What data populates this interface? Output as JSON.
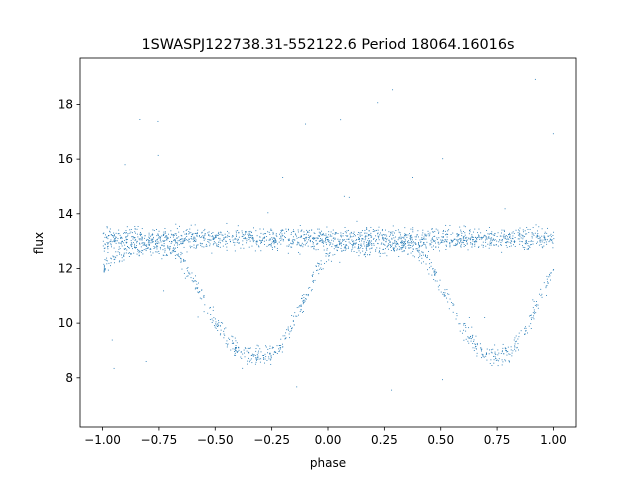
{
  "chart_data": {
    "type": "scatter",
    "title": "1SWASPJ122738.31-552122.6 Period 18064.16016s",
    "xlabel": "phase",
    "ylabel": "flux",
    "xlim": [
      -1.1,
      1.1
    ],
    "ylim": [
      6.2,
      19.7
    ],
    "xticks": [
      -1.0,
      -0.75,
      -0.5,
      -0.25,
      0.0,
      0.25,
      0.5,
      0.75,
      1.0
    ],
    "xtick_labels": [
      "−1.00",
      "−0.75",
      "−0.50",
      "−0.25",
      "0.00",
      "0.25",
      "0.50",
      "0.75",
      "1.00"
    ],
    "yticks": [
      8,
      10,
      12,
      14,
      16,
      18
    ],
    "ytick_labels": [
      "8",
      "10",
      "12",
      "14",
      "16",
      "18"
    ],
    "grid": false,
    "point_color": "#1f77b4",
    "series": [
      {
        "name": "",
        "description_points": "phase-folded light curve; upper band near flux 13.1 across all phases; second branch dips to minima near 8.8 at phase -0.28 and 0.72",
        "x": [
          -1.0,
          -0.95,
          -0.9,
          -0.85,
          -0.8,
          -0.75,
          -0.7,
          -0.65,
          -0.6,
          -0.55,
          -0.5,
          -0.45,
          -0.4,
          -0.35,
          -0.3,
          -0.25,
          -0.2,
          -0.15,
          -0.1,
          -0.05,
          0.0,
          0.05,
          0.1,
          0.15,
          0.2,
          0.25,
          0.3,
          0.35,
          0.4,
          0.45,
          0.5,
          0.55,
          0.6,
          0.65,
          0.7,
          0.75,
          0.8,
          0.85,
          0.9,
          0.95,
          1.0
        ],
        "y_upper": [
          13.1,
          13.1,
          13.1,
          13.1,
          13.1,
          13.1,
          13.1,
          13.1,
          13.1,
          13.1,
          13.1,
          13.1,
          13.1,
          13.1,
          13.1,
          13.1,
          13.1,
          13.1,
          13.1,
          13.1,
          13.1,
          13.1,
          13.1,
          13.1,
          13.1,
          13.1,
          13.1,
          13.1,
          13.1,
          13.1,
          13.1,
          13.1,
          13.1,
          13.1,
          13.1,
          13.1,
          13.1,
          13.1,
          13.1,
          13.1,
          13.1
        ],
        "y_lower": [
          12.0,
          12.5,
          12.7,
          12.8,
          12.8,
          12.8,
          12.7,
          12.3,
          11.6,
          10.8,
          10.0,
          9.4,
          9.0,
          8.8,
          8.8,
          8.9,
          9.3,
          10.1,
          11.0,
          12.0,
          12.6,
          12.8,
          12.8,
          12.8,
          12.8,
          12.8,
          12.8,
          12.8,
          12.7,
          12.2,
          11.4,
          10.6,
          9.8,
          9.2,
          8.9,
          8.8,
          8.9,
          9.4,
          10.2,
          11.1,
          12.0
        ]
      }
    ]
  }
}
